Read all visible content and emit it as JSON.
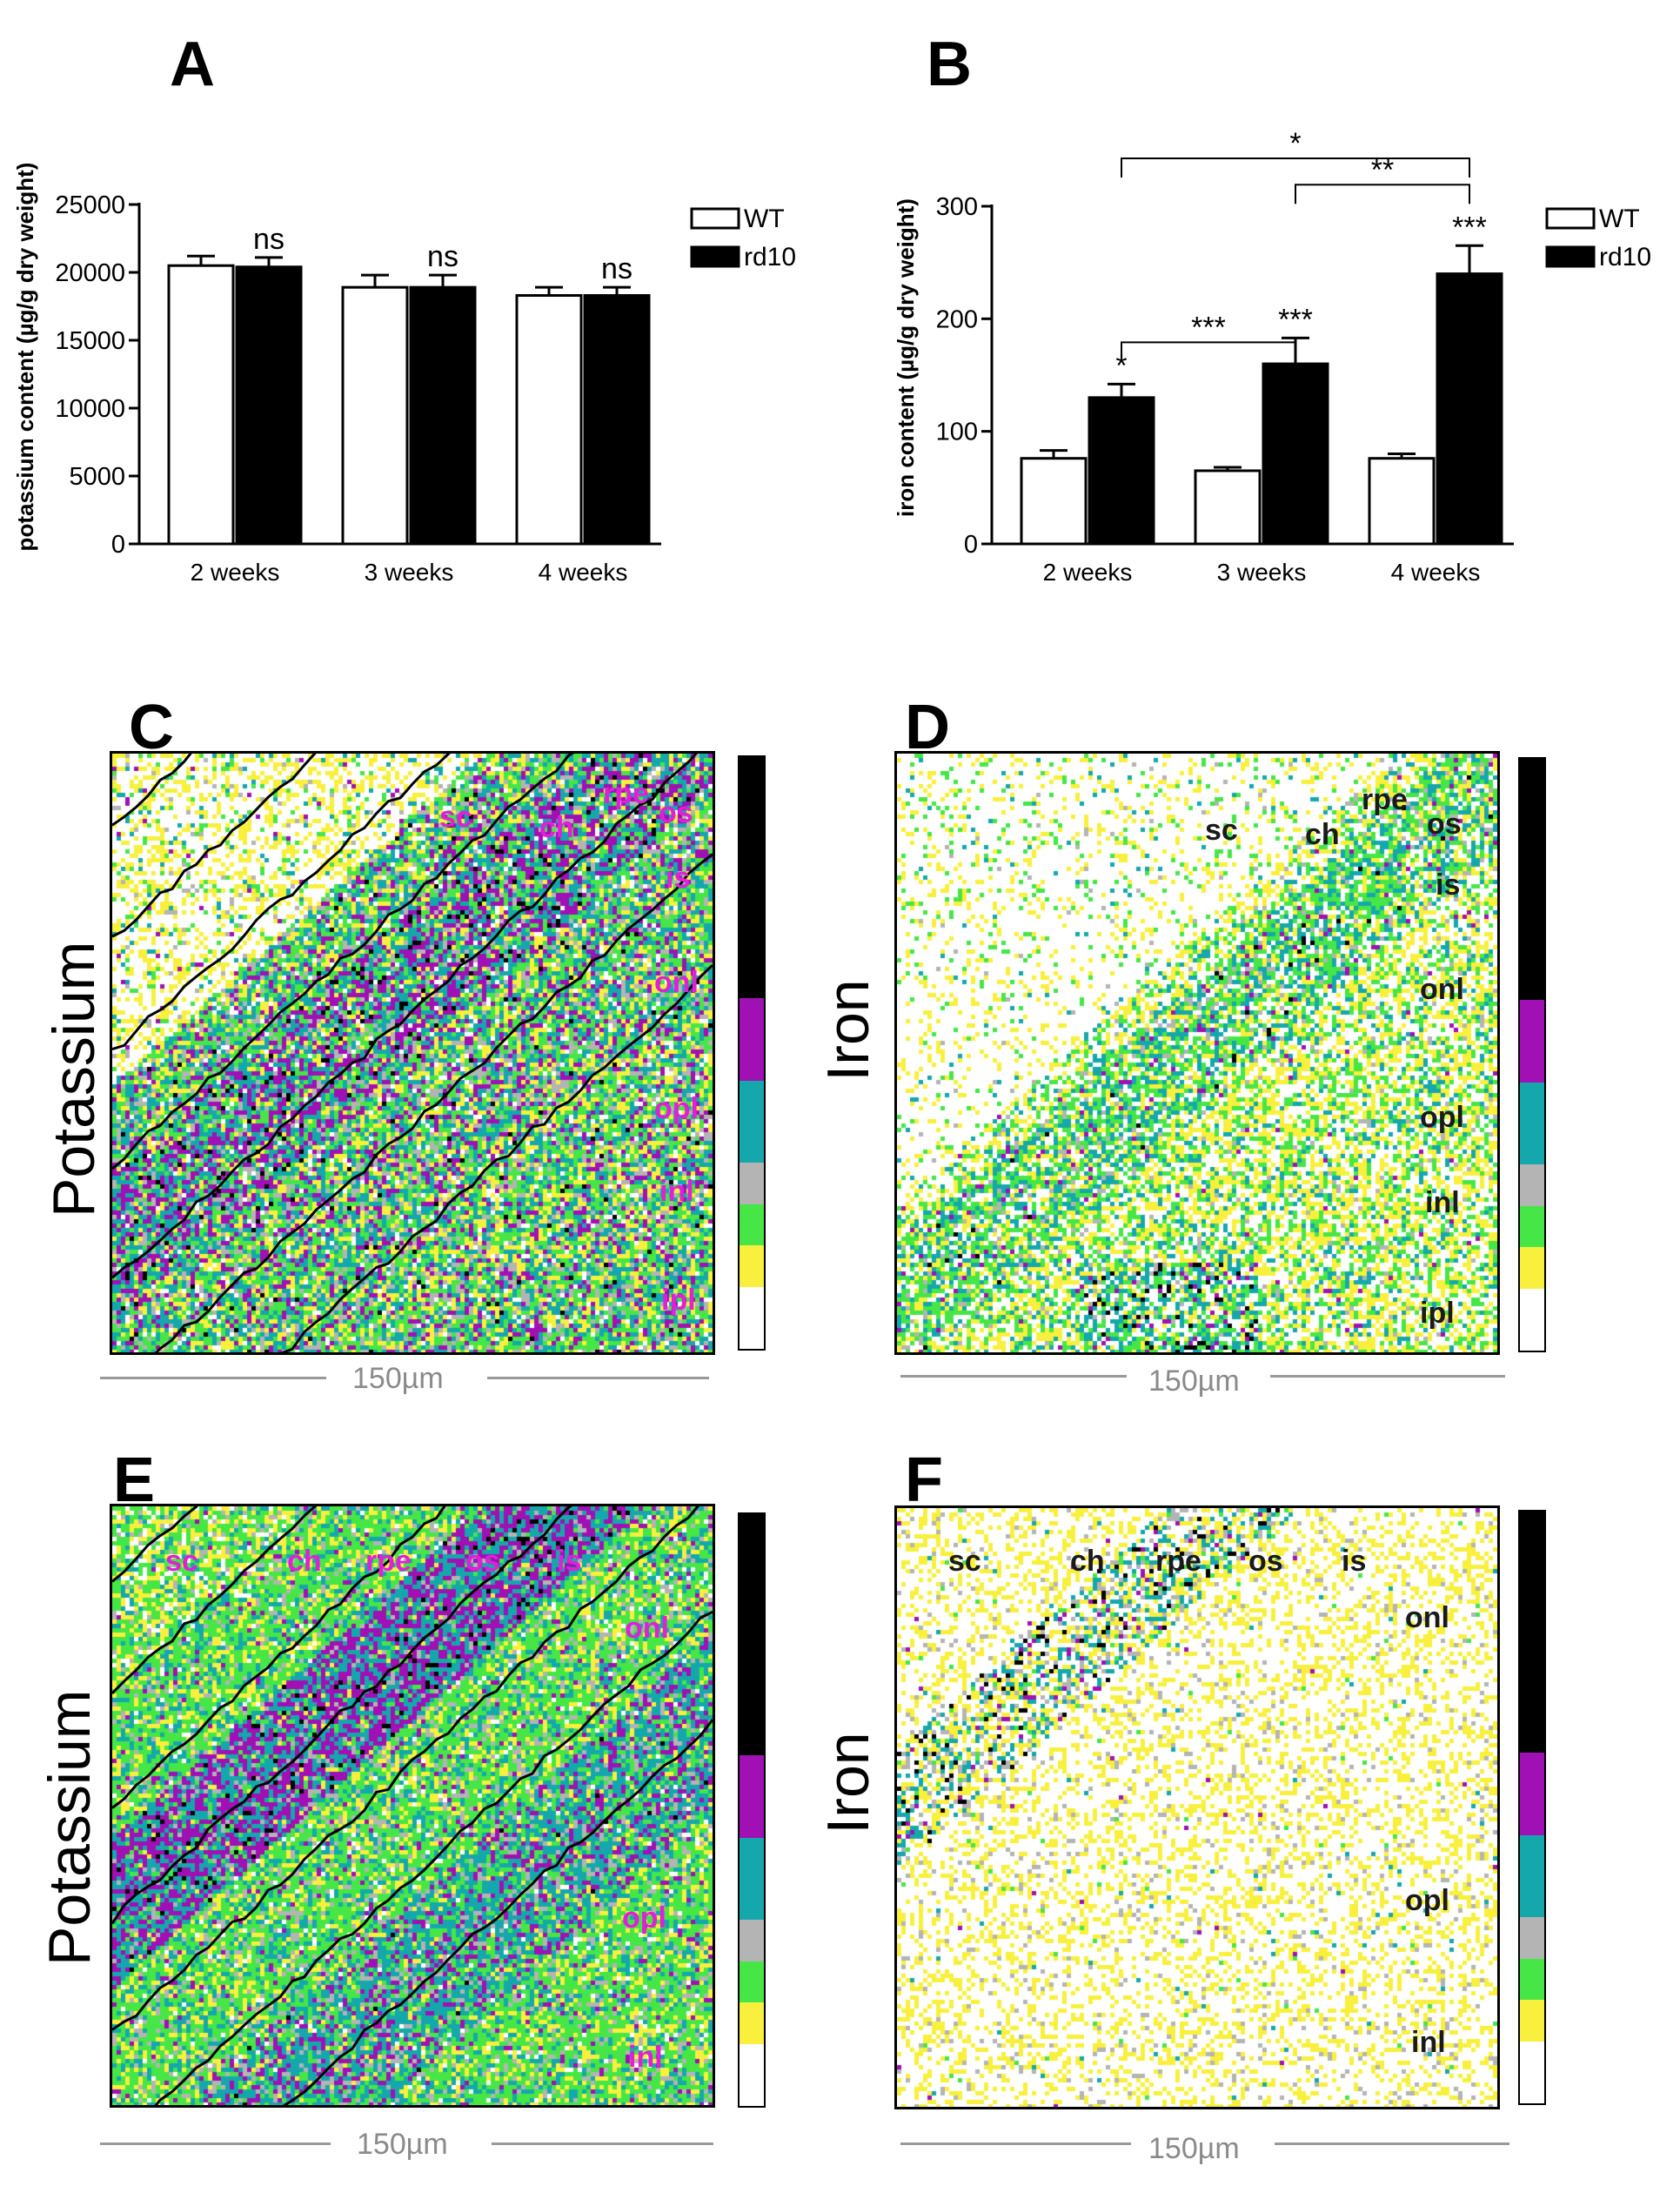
{
  "panels": {
    "A": "A",
    "B": "B",
    "C": "C",
    "D": "D",
    "E": "E",
    "F": "F"
  },
  "chart_data": [
    {
      "id": "A",
      "type": "bar",
      "ylabel": "potassium content (µg/g dry weight)",
      "categories": [
        "2 weeks",
        "3 weeks",
        "4 weeks"
      ],
      "ylim": [
        0,
        25000
      ],
      "yticks": [
        "0",
        "5000",
        "10000",
        "15000",
        "20000",
        "25000"
      ],
      "series": [
        {
          "name": "WT",
          "values": [
            20500,
            18900,
            18300
          ],
          "errors": [
            700,
            900,
            600
          ],
          "color": "#ffffff"
        },
        {
          "name": "rd10",
          "values": [
            20400,
            18900,
            18300
          ],
          "errors": [
            700,
            900,
            600
          ],
          "color": "#000000"
        }
      ],
      "annotations": [
        "ns",
        "ns",
        "ns"
      ],
      "legend": "top-right"
    },
    {
      "id": "B",
      "type": "bar",
      "ylabel": "iron content (µg/g dry weight)",
      "categories": [
        "2 weeks",
        "3 weeks",
        "4 weeks"
      ],
      "ylim": [
        0,
        300
      ],
      "yticks": [
        "0",
        "100",
        "200",
        "300"
      ],
      "series": [
        {
          "name": "WT",
          "values": [
            76,
            65,
            76
          ],
          "errors": [
            7,
            3,
            4
          ],
          "color": "#ffffff"
        },
        {
          "name": "rd10",
          "values": [
            130,
            160,
            240
          ],
          "errors": [
            12,
            23,
            25
          ],
          "color": "#000000"
        }
      ],
      "annotations": [
        "*",
        "***",
        "***"
      ],
      "brackets": [
        {
          "label": "***",
          "from": "2 weeks",
          "to": "3 weeks"
        },
        {
          "label": "**",
          "from": "3 weeks",
          "to": "4 weeks"
        },
        {
          "label": "*",
          "from": "2 weeks",
          "to": "4 weeks"
        }
      ],
      "legend": "top-right"
    }
  ],
  "maps": {
    "C": {
      "element": "Potassium",
      "scale": "150µm",
      "labels": [
        "sc",
        "ch",
        "rpe",
        "os",
        "is",
        "onl",
        "opl",
        "inl",
        "ipl"
      ],
      "label_color": "#e21fd8"
    },
    "D": {
      "element": "Iron",
      "scale": "150µm",
      "labels": [
        "sc",
        "ch",
        "rpe",
        "os",
        "is",
        "onl",
        "opl",
        "inl",
        "ipl"
      ],
      "label_color": "#1a1a1a"
    },
    "E": {
      "element": "Potassium",
      "scale": "150µm",
      "labels": [
        "sc",
        "ch",
        "rpe",
        "os",
        "is",
        "onl",
        "opl",
        "inl"
      ],
      "label_color": "#e21fd8"
    },
    "F": {
      "element": "Iron",
      "scale": "150µm",
      "labels": [
        "sc",
        "ch",
        "rpe",
        "os",
        "is",
        "onl",
        "opl",
        "inl"
      ],
      "label_color": "#1a1a1a"
    }
  },
  "colorbar": [
    "#000000",
    "#a010b4",
    "#14a8ac",
    "#b4b4b4",
    "#46e646",
    "#f8f03c",
    "#ffffff"
  ]
}
